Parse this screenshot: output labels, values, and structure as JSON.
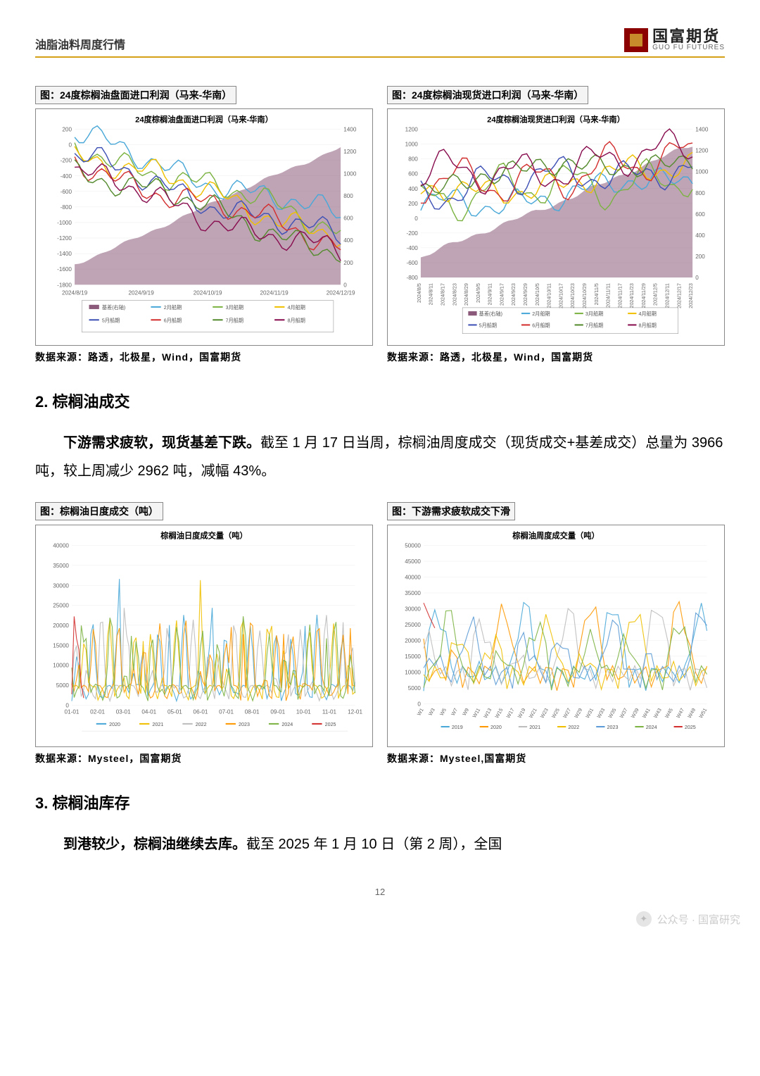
{
  "header": {
    "title": "油脂油料周度行情",
    "logo_cn": "国富期货",
    "logo_en": "GUO FU FUTURES"
  },
  "charts": {
    "row1": {
      "left": {
        "label": "图：24度棕榈油盘面进口利润（马来-华南）",
        "title": "24度棕榈油盘面进口利润（马来-华南）",
        "type": "line+area",
        "ylim_left": [
          -1800,
          200
        ],
        "ytick_left": [
          -1800,
          -1600,
          -1400,
          -1200,
          -1000,
          -800,
          -600,
          -400,
          -200,
          0,
          200
        ],
        "ylim_right": [
          0,
          1400
        ],
        "ytick_right": [
          0,
          200,
          400,
          600,
          800,
          1000,
          1200,
          1400
        ],
        "x_labels": [
          "2024/8/19",
          "2024/9/19",
          "2024/10/19",
          "2024/11/19",
          "2024/12/19"
        ],
        "legend": [
          "基差(右轴)",
          "2月船期",
          "3月船期",
          "4月船期",
          "5月船期",
          "6月船期",
          "7月船期",
          "8月船期"
        ],
        "legend_colors": [
          "#8b5a7a",
          "#4aa8d8",
          "#7cb342",
          "#f0c000",
          "#3f51b5",
          "#d32f2f",
          "#558b2f",
          "#880e4f"
        ],
        "area_color": "#8b5a7a",
        "source": "数据来源：路透，北极星，Wind，国富期货"
      },
      "right": {
        "label": "图：24度棕榈油现货进口利润（马来-华南）",
        "title": "24度棕榈油现货进口利润（马来-华南）",
        "type": "line+area",
        "ylim_left": [
          -800,
          1200
        ],
        "ytick_left": [
          -800,
          -600,
          -400,
          -200,
          0,
          200,
          400,
          600,
          800,
          1000,
          1200
        ],
        "ylim_right": [
          0,
          1400
        ],
        "ytick_right": [
          0,
          200,
          400,
          600,
          800,
          1000,
          1200,
          1400
        ],
        "legend": [
          "基差(右轴)",
          "2月船期",
          "3月船期",
          "4月船期",
          "5月船期",
          "6月船期",
          "7月船期",
          "8月船期"
        ],
        "legend_colors": [
          "#8b5a7a",
          "#4aa8d8",
          "#7cb342",
          "#f0c000",
          "#3f51b5",
          "#d32f2f",
          "#558b2f",
          "#880e4f"
        ],
        "area_color": "#8b5a7a",
        "source": "数据来源：路透，北极星，Wind，国富期货"
      }
    },
    "row2": {
      "left": {
        "label": "图：棕榈油日度成交（吨）",
        "title": "棕榈油日度成交量（吨）",
        "type": "line",
        "ylim": [
          0,
          40000
        ],
        "ytick": [
          0,
          5000,
          10000,
          15000,
          20000,
          25000,
          30000,
          35000,
          40000
        ],
        "x_labels": [
          "01-01",
          "02-01",
          "03-01",
          "04-01",
          "05-01",
          "06-01",
          "07-01",
          "08-01",
          "09-01",
          "10-01",
          "11-01",
          "12-01"
        ],
        "legend": [
          "2020",
          "2021",
          "2022",
          "2023",
          "2024",
          "2025"
        ],
        "legend_colors": [
          "#4aa8d8",
          "#f0c000",
          "#bdbdbd",
          "#ff9800",
          "#7cb342",
          "#d32f2f"
        ],
        "source": "数据来源：Mysteel，国富期货"
      },
      "right": {
        "label": "图：下游需求疲软成交下滑",
        "title": "棕榈油周度成交量（吨）",
        "type": "line",
        "ylim": [
          0,
          50000
        ],
        "ytick": [
          0,
          5000,
          10000,
          15000,
          20000,
          25000,
          30000,
          35000,
          40000,
          45000,
          50000
        ],
        "legend": [
          "2019",
          "2020",
          "2021",
          "2022",
          "2023",
          "2024",
          "2025"
        ],
        "legend_colors": [
          "#4aa8d8",
          "#ff9800",
          "#bdbdbd",
          "#f0c000",
          "#5c9bd5",
          "#7cb342",
          "#d32f2f"
        ],
        "source": "数据来源：Mysteel,国富期货"
      }
    }
  },
  "section2": {
    "heading": "2. 棕榈油成交",
    "bold": "下游需求疲软，现货基差下跌。",
    "text": "截至 1 月 17 日当周，棕榈油周度成交（现货成交+基差成交）总量为 3966 吨，较上周减少 2962 吨，减幅 43%。"
  },
  "section3": {
    "heading": "3. 棕榈油库存",
    "bold": "到港较少，棕榈油继续去库。",
    "text": "截至 2025 年 1 月 10 日（第 2 周），全国"
  },
  "page_num": "12",
  "watermark": "公众号 · 国富研究"
}
